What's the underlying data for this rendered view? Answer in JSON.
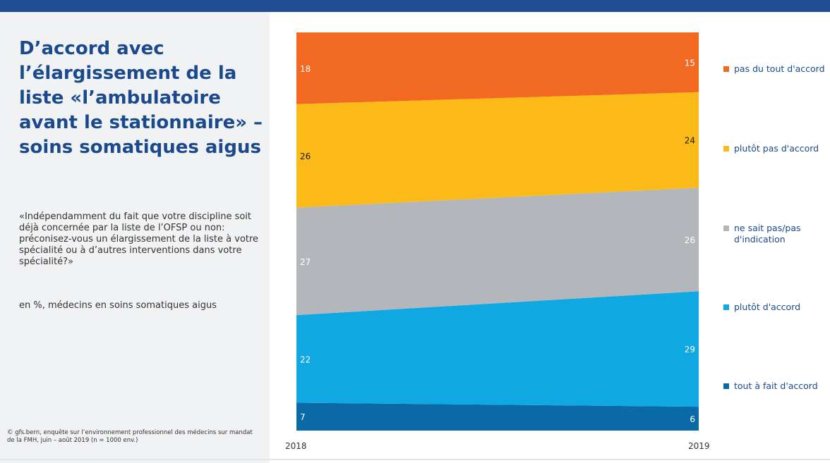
{
  "header": {
    "title": "D’accord avec l’élargissement de la liste «l’ambulatoire avant le stationnaire» – soins somatiques aigus",
    "question": "«Indépendamment du fait que votre discipline soit déjà concernée par la liste de l’OFSP ou non: préconisez-vous un élargissement de la liste à votre spécialité ou à d’autres interventions dans votre spécialité?»",
    "unit": "en %, médecins en soins somatiques aigus"
  },
  "footer": {
    "source": "© gfs.bern, enquête sur l’environnement professionnel des médecins sur mandat de la FMH, juin – août 2019 (n = 1000 env.)"
  },
  "colors": {
    "brand_blue": "#1f4e96",
    "title_blue": "#1a4a8d",
    "panel_bg": "#f1f2f4"
  },
  "chart_data": {
    "type": "area",
    "stacked": true,
    "unit": "%",
    "x": [
      "2018",
      "2019"
    ],
    "series": [
      {
        "name": "tout à fait d'accord",
        "values": [
          7,
          6
        ],
        "color": "#0a6aa8"
      },
      {
        "name": "plutôt d'accord",
        "values": [
          22,
          29
        ],
        "color": "#0fa8e2"
      },
      {
        "name": "ne sait pas/pas d'indication",
        "values": [
          27,
          26
        ],
        "color": "#b3b6ba"
      },
      {
        "name": "plutôt pas d'accord",
        "values": [
          26,
          24
        ],
        "color": "#fbba17"
      },
      {
        "name": "pas du tout d'accord",
        "values": [
          18,
          15
        ],
        "color": "#f26a21"
      }
    ],
    "ylim": [
      0,
      100
    ],
    "legend": "right",
    "grid": false
  }
}
